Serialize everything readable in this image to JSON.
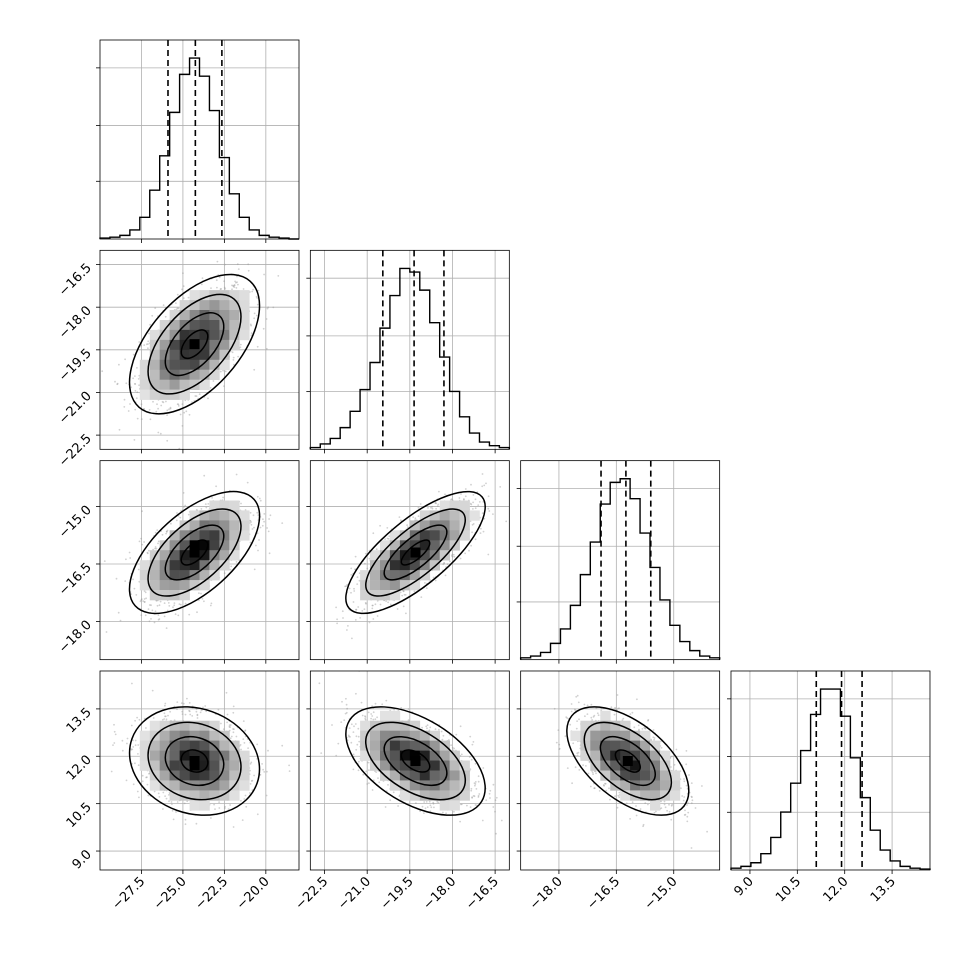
{
  "chart_data": {
    "type": "corner",
    "grid": true,
    "parameters": [
      {
        "range": [
          -30.0,
          -18.0
        ],
        "ticks": [
          -27.5,
          -25.0,
          -22.5,
          -20.0
        ],
        "tick_labels": [
          "−27.5",
          "−25.0",
          "−22.5",
          "−20.0"
        ],
        "quantiles": [
          -25.9,
          -24.25,
          -22.65
        ],
        "hist": [
          0.5,
          1,
          2,
          5,
          12,
          27,
          46,
          70,
          91,
          100,
          90,
          71,
          45,
          25,
          12,
          5,
          2,
          1,
          0.5,
          0
        ]
      },
      {
        "range": [
          -23.0,
          -16.0
        ],
        "ticks": [
          -22.5,
          -21.0,
          -19.5,
          -18.0,
          -16.5
        ],
        "tick_labels": [
          "−22.5",
          "−21.0",
          "−19.5",
          "−18.0",
          "−16.5"
        ],
        "quantiles": [
          -20.45,
          -19.35,
          -18.3
        ],
        "hist": [
          1,
          3,
          6,
          12,
          21,
          33,
          48,
          67,
          85,
          100,
          98,
          88,
          70,
          51,
          32,
          18,
          9,
          4,
          2,
          1
        ]
      },
      {
        "range": [
          -19.0,
          -13.8
        ],
        "ticks": [
          -18.0,
          -16.5,
          -15.0
        ],
        "tick_labels": [
          "−18.0",
          "−16.5",
          "−15.0"
        ],
        "quantiles": [
          -16.9,
          -16.25,
          -15.6
        ],
        "hist": [
          1,
          2,
          4,
          9,
          17,
          30,
          47,
          65,
          86,
          98,
          100,
          89,
          70,
          51,
          33,
          19,
          10,
          5,
          2,
          1
        ]
      },
      {
        "range": [
          8.4,
          14.7
        ],
        "ticks": [
          9.0,
          10.5,
          12.0,
          13.5
        ],
        "tick_labels": [
          "9.0",
          "10.5",
          "12.0",
          "13.5"
        ],
        "quantiles": [
          11.1,
          11.9,
          12.55
        ],
        "hist": [
          1,
          2,
          4,
          9,
          18,
          32,
          48,
          66,
          86,
          100,
          100,
          85,
          62,
          40,
          22,
          11,
          5,
          2,
          1,
          0.5
        ]
      }
    ],
    "pairs": [
      {
        "row": 1,
        "col": 0,
        "center": [
          -24.3,
          -19.3
        ],
        "sd": [
          1.6,
          1.0
        ],
        "corr": 0.55
      },
      {
        "row": 2,
        "col": 0,
        "center": [
          -24.3,
          -16.2
        ],
        "sd": [
          1.6,
          0.65
        ],
        "corr": 0.6
      },
      {
        "row": 2,
        "col": 1,
        "center": [
          -19.3,
          -16.2
        ],
        "sd": [
          1.0,
          0.65
        ],
        "corr": 0.75
      },
      {
        "row": 3,
        "col": 0,
        "center": [
          -24.3,
          11.85
        ],
        "sd": [
          1.6,
          0.7
        ],
        "corr": -0.15
      },
      {
        "row": 3,
        "col": 1,
        "center": [
          -19.3,
          11.85
        ],
        "sd": [
          1.0,
          0.7
        ],
        "corr": -0.5
      },
      {
        "row": 3,
        "col": 2,
        "center": [
          -16.2,
          11.85
        ],
        "sd": [
          0.65,
          0.7
        ],
        "corr": -0.55
      }
    ]
  }
}
